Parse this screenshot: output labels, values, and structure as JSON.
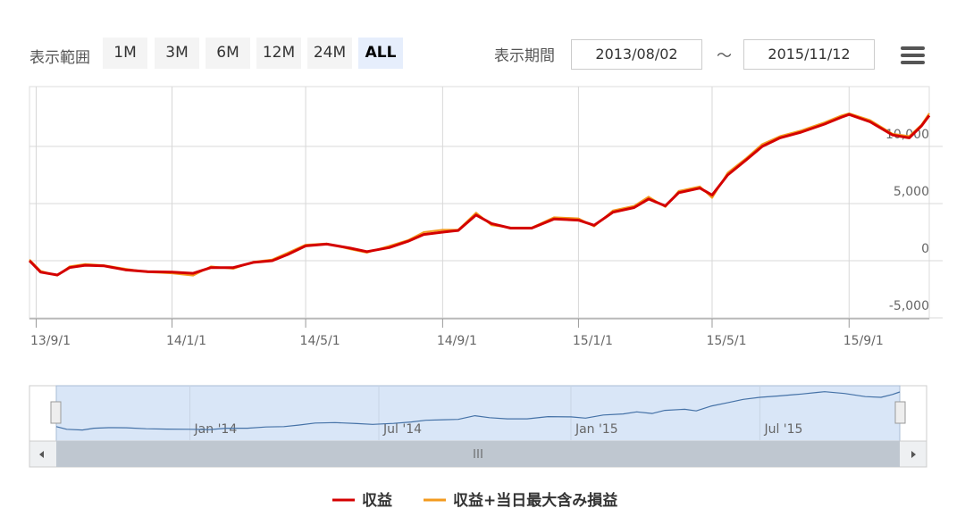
{
  "toolbar": {
    "range_label": "表示範囲",
    "buttons": [
      "1M",
      "3M",
      "6M",
      "12M",
      "24M",
      "ALL"
    ],
    "selected": "ALL",
    "period_label": "表示期間",
    "from": "2013/08/02",
    "separator": "～",
    "to": "2015/11/12"
  },
  "chart_data": {
    "type": "line",
    "x": [
      "2013-08-26",
      "2013-09-05",
      "2013-09-20",
      "2013-10-01",
      "2013-10-15",
      "2013-11-01",
      "2013-11-20",
      "2013-12-10",
      "2014-01-01",
      "2014-01-20",
      "2014-02-05",
      "2014-02-25",
      "2014-03-15",
      "2014-04-01",
      "2014-04-15",
      "2014-05-01",
      "2014-05-20",
      "2014-06-10",
      "2014-06-25",
      "2014-07-15",
      "2014-08-01",
      "2014-08-15",
      "2014-09-01",
      "2014-09-15",
      "2014-10-01",
      "2014-10-15",
      "2014-11-01",
      "2014-11-20",
      "2014-12-10",
      "2015-01-01",
      "2015-01-15",
      "2015-02-01",
      "2015-02-20",
      "2015-03-05",
      "2015-03-20",
      "2015-04-01",
      "2015-04-20",
      "2015-05-01",
      "2015-05-15",
      "2015-06-01",
      "2015-06-15",
      "2015-07-01",
      "2015-07-20",
      "2015-08-10",
      "2015-08-25",
      "2015-09-01",
      "2015-09-20",
      "2015-10-10",
      "2015-10-25",
      "2015-11-05",
      "2015-11-12"
    ],
    "series": [
      {
        "name": "収益",
        "color": "#d40000",
        "values": [
          0,
          -1000,
          -1250,
          -600,
          -400,
          -450,
          -800,
          -950,
          -1000,
          -1100,
          -600,
          -600,
          -150,
          0,
          550,
          1300,
          1450,
          1100,
          800,
          1150,
          1700,
          2300,
          2500,
          2650,
          4000,
          3250,
          2850,
          2850,
          3650,
          3550,
          3100,
          4250,
          4650,
          5400,
          4800,
          5950,
          6350,
          5750,
          7500,
          8850,
          10000,
          10750,
          11250,
          11950,
          12550,
          12800,
          12150,
          11000,
          10750,
          11800,
          12700
        ]
      },
      {
        "name": "収益+当日最大含み損益",
        "color": "#f39a1e",
        "values": [
          100,
          -900,
          -1300,
          -500,
          -300,
          -400,
          -700,
          -1000,
          -1100,
          -1300,
          -500,
          -700,
          -100,
          100,
          700,
          1400,
          1500,
          1000,
          700,
          1300,
          1800,
          2500,
          2700,
          2700,
          4200,
          3100,
          2900,
          2900,
          3800,
          3700,
          3000,
          4400,
          4800,
          5600,
          4700,
          6100,
          6500,
          5500,
          7700,
          9000,
          10200,
          10900,
          11400,
          12100,
          12700,
          12900,
          12300,
          11100,
          10900,
          11900,
          12900
        ]
      }
    ],
    "xlim": [
      "2013-08-26",
      "2015-11-12"
    ],
    "xticks": [
      {
        "value": "2013-09-01",
        "label": "13/9/1"
      },
      {
        "value": "2014-01-01",
        "label": "14/1/1"
      },
      {
        "value": "2014-05-01",
        "label": "14/5/1"
      },
      {
        "value": "2014-09-01",
        "label": "14/9/1"
      },
      {
        "value": "2015-01-01",
        "label": "15/1/1"
      },
      {
        "value": "2015-05-01",
        "label": "15/5/1"
      },
      {
        "value": "2015-09-01",
        "label": "15/9/1"
      }
    ],
    "ylim": [
      -5000,
      15000
    ],
    "yticks": [
      {
        "value": -5000,
        "label": "-5,000"
      },
      0,
      {
        "value": 5000,
        "label": "5,000"
      },
      {
        "value": 10000,
        "label": "10,000"
      }
    ],
    "grid": true,
    "navigator": {
      "color": "#4572a7",
      "xticks": [
        {
          "value": "2014-01-01",
          "label": "Jan '14"
        },
        {
          "value": "2014-07-01",
          "label": "Jul '14"
        },
        {
          "value": "2015-01-01",
          "label": "Jan '15"
        },
        {
          "value": "2015-07-01",
          "label": "Jul '15"
        }
      ]
    }
  }
}
